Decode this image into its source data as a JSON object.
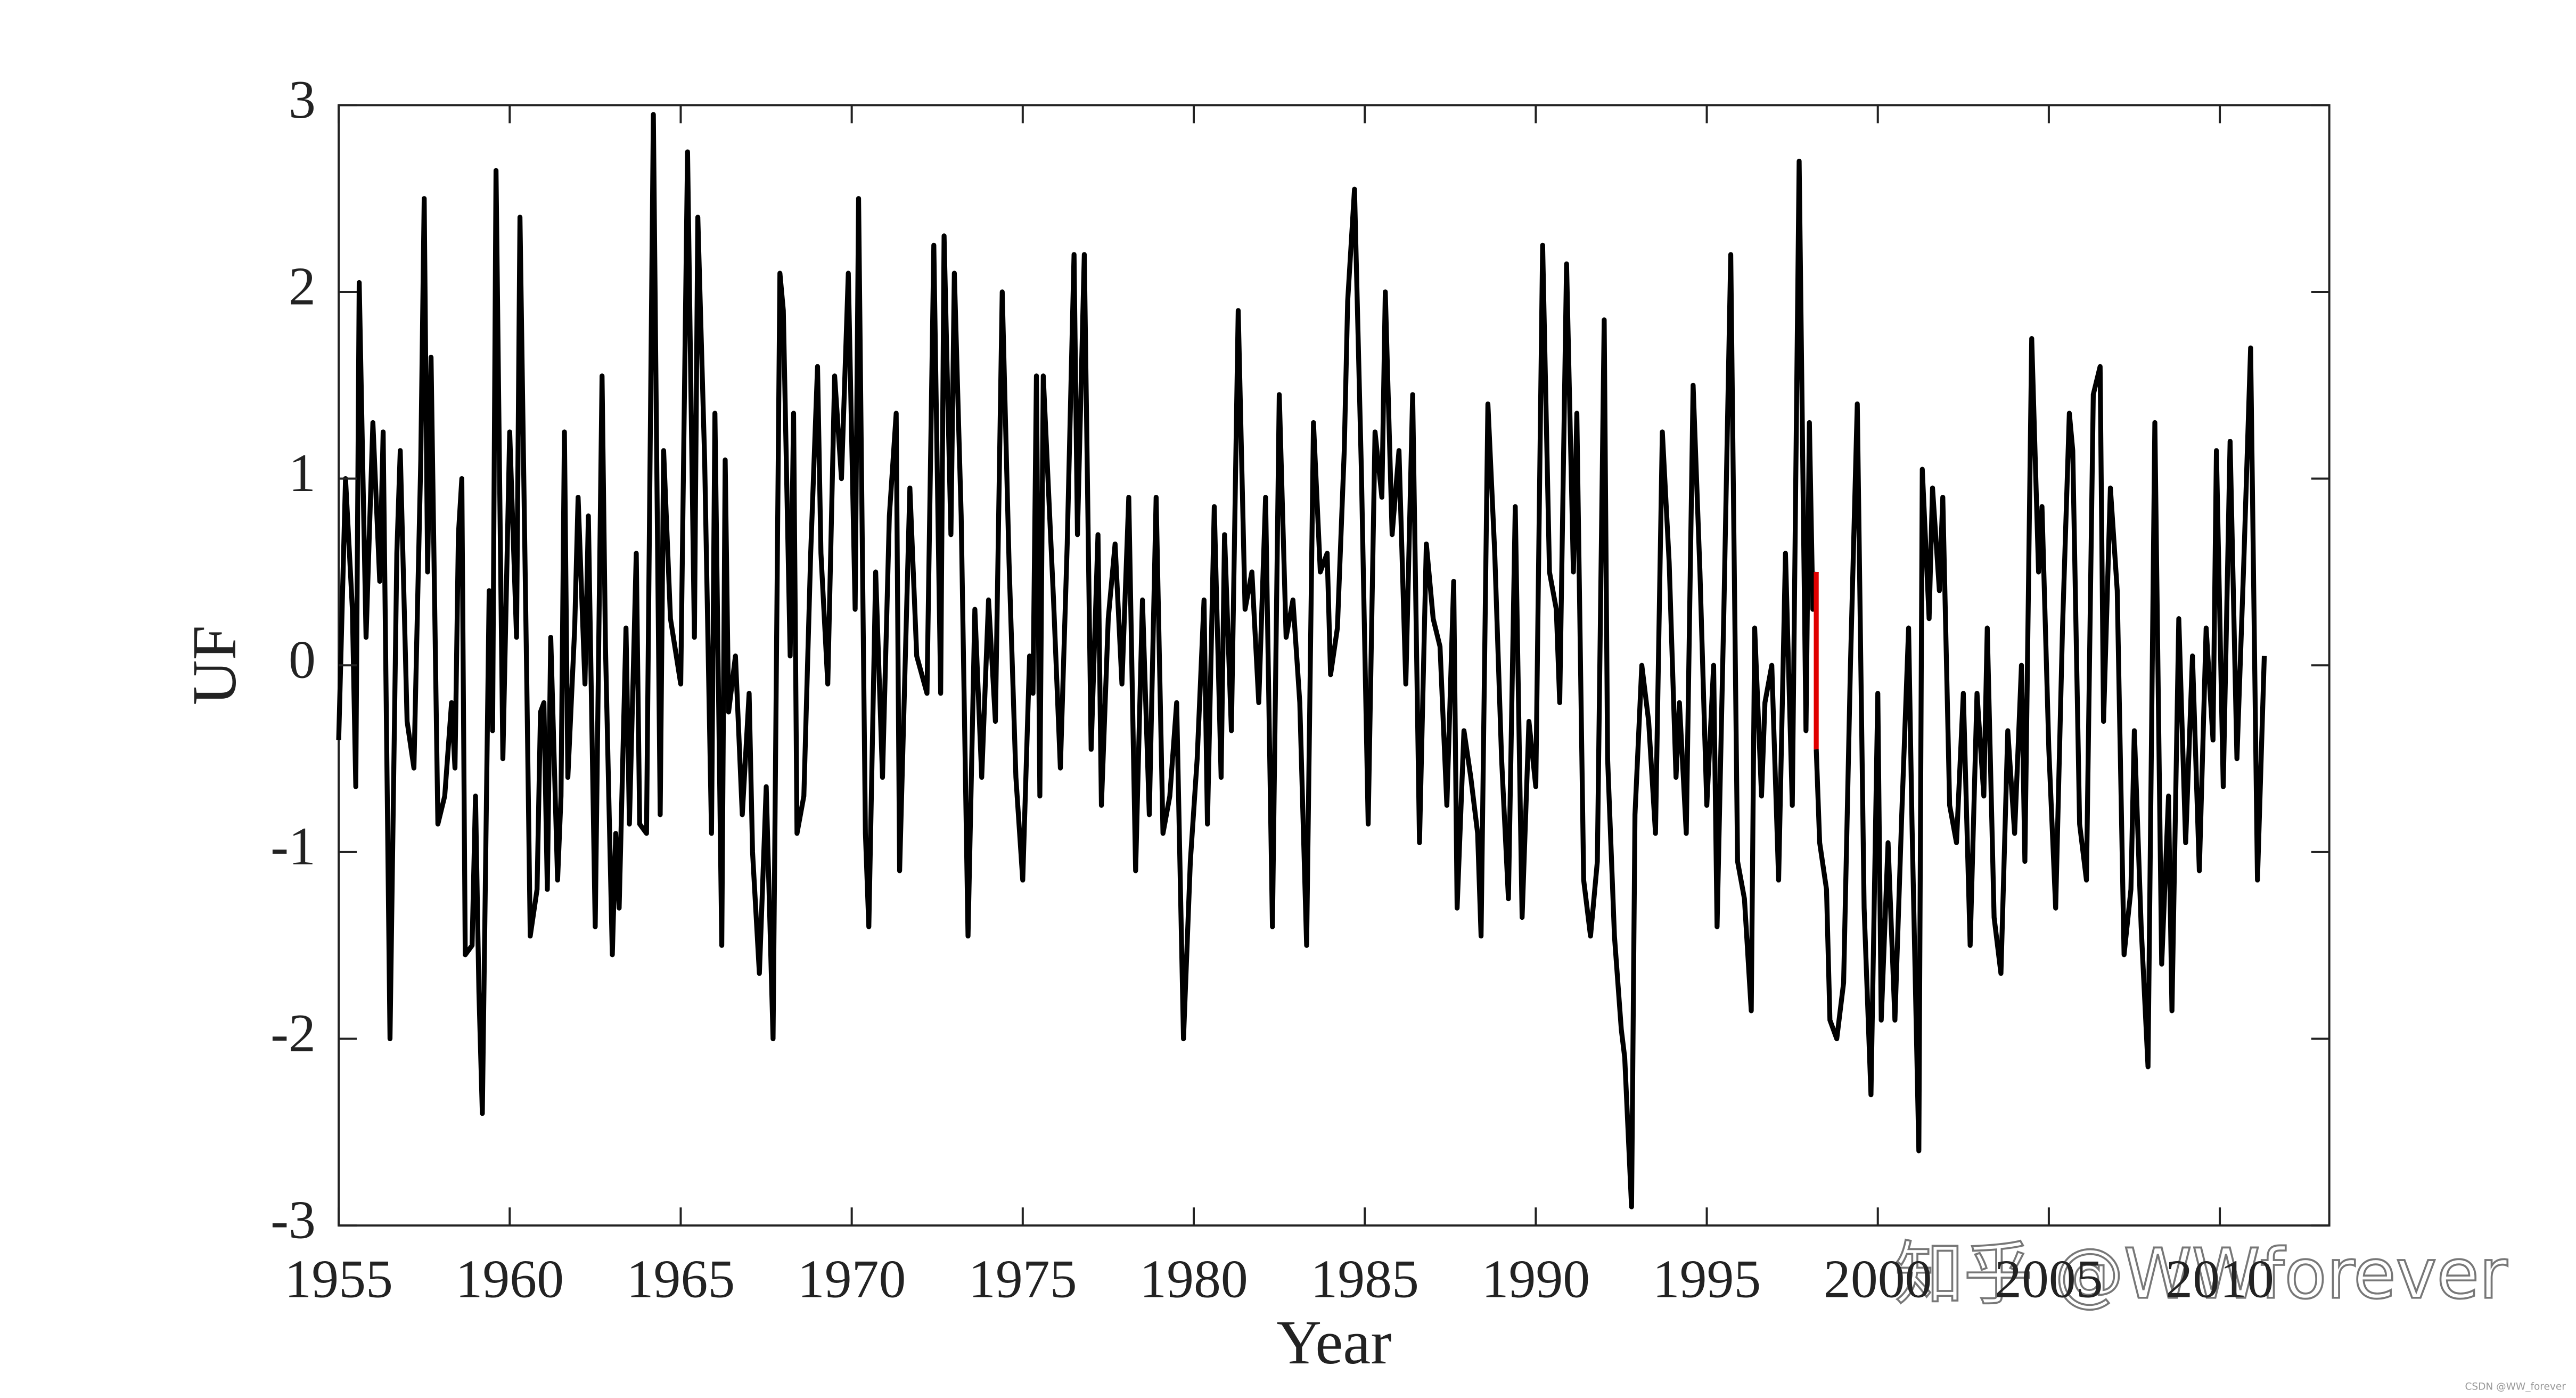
{
  "chart_data": {
    "type": "line",
    "xlabel": "Year",
    "ylabel": "UF",
    "xlim": [
      1955,
      2013.2
    ],
    "ylim": [
      -3,
      3
    ],
    "xticks": [
      1955,
      1960,
      1965,
      1970,
      1975,
      1980,
      1985,
      1990,
      1995,
      2000,
      2005,
      2010
    ],
    "yticks": [
      -3,
      -2,
      -1,
      0,
      1,
      2,
      3
    ],
    "watermark": "知乎 @WWforever",
    "credit": "CSDN @WW_forever",
    "series": [
      {
        "color": "#000000",
        "x": [
          1955.0,
          1955.2,
          1955.4,
          1955.5,
          1955.6,
          1955.8,
          1956.0,
          1956.2,
          1956.3,
          1956.5,
          1956.7,
          1956.8,
          1957.0,
          1957.2,
          1957.4,
          1957.5,
          1957.6,
          1957.7,
          1957.9,
          1958.1,
          1958.3,
          1958.4,
          1958.5,
          1958.6,
          1958.7,
          1958.9,
          1959.0,
          1959.1,
          1959.2,
          1959.4,
          1959.5,
          1959.6,
          1959.8,
          1960.0,
          1960.2,
          1960.3,
          1960.5,
          1960.6,
          1960.8,
          1960.9,
          1961.0,
          1961.1,
          1961.2,
          1961.4,
          1961.5,
          1961.6,
          1961.7,
          1961.9,
          1962.0,
          1962.2,
          1962.3,
          1962.5,
          1962.7,
          1962.8,
          1963.0,
          1963.1,
          1963.2,
          1963.4,
          1963.5,
          1963.7,
          1963.8,
          1964.0,
          1964.2,
          1964.4,
          1964.5,
          1964.7,
          1965.0,
          1965.2,
          1965.4,
          1965.5,
          1965.7,
          1965.9,
          1966.0,
          1966.2,
          1966.3,
          1966.4,
          1966.6,
          1966.8,
          1967.0,
          1967.1,
          1967.3,
          1967.5,
          1967.7,
          1967.9,
          1968.0,
          1968.2,
          1968.3,
          1968.4,
          1968.6,
          1968.8,
          1969.0,
          1969.1,
          1969.3,
          1969.5,
          1969.7,
          1969.9,
          1970.1,
          1970.2,
          1970.4,
          1970.5,
          1970.7,
          1970.9,
          1971.1,
          1971.3,
          1971.4,
          1971.7,
          1971.9,
          1972.2,
          1972.4,
          1972.6,
          1972.7,
          1972.9,
          1973.0,
          1973.2,
          1973.4,
          1973.6,
          1973.8,
          1974.0,
          1974.2,
          1974.4,
          1974.6,
          1974.8,
          1975.0,
          1975.2,
          1975.3,
          1975.4,
          1975.5,
          1975.6,
          1975.9,
          1976.1,
          1976.3,
          1976.5,
          1976.6,
          1976.8,
          1977.0,
          1977.2,
          1977.3,
          1977.5,
          1977.7,
          1977.9,
          1978.1,
          1978.3,
          1978.5,
          1978.7,
          1978.9,
          1979.1,
          1979.3,
          1979.5,
          1979.7,
          1979.9,
          1980.1,
          1980.3,
          1980.4,
          1980.6,
          1980.8,
          1980.9,
          1981.1,
          1981.3,
          1981.5,
          1981.7,
          1981.9,
          1982.1,
          1982.3,
          1982.5,
          1982.7,
          1982.9,
          1983.1,
          1983.3,
          1983.5,
          1983.7,
          1983.9,
          1984.0,
          1984.2,
          1984.4,
          1984.5,
          1984.7,
          1984.9,
          1985.1,
          1985.3,
          1985.5,
          1985.6,
          1985.8,
          1986.0,
          1986.2,
          1986.4,
          1986.6,
          1986.8,
          1987.0,
          1987.2,
          1987.4,
          1987.6,
          1987.7,
          1987.9,
          1988.1,
          1988.3,
          1988.4,
          1988.6,
          1988.8,
          1989.0,
          1989.2,
          1989.4,
          1989.6,
          1989.8,
          1990.0,
          1990.2,
          1990.4,
          1990.6,
          1990.7,
          1990.9,
          1991.1,
          1991.2,
          1991.4,
          1991.6,
          1991.8,
          1992.0,
          1992.1,
          1992.3,
          1992.5,
          1992.6,
          1992.8,
          1992.9,
          1993.1,
          1993.3,
          1993.5,
          1993.7,
          1993.9,
          1994.1,
          1994.2,
          1994.4,
          1994.6,
          1994.8,
          1995.0,
          1995.2,
          1995.3,
          1995.5,
          1995.7,
          1995.9,
          1996.1,
          1996.3,
          1996.4,
          1996.6,
          1996.7,
          1996.9,
          1997.1,
          1997.3,
          1997.5,
          1997.7,
          1997.9,
          1998.0,
          1998.1,
          1998.2,
          1998.2,
          1998.2,
          1998.3,
          1998.5,
          1998.6,
          1998.8,
          1999.0,
          1999.2,
          1999.4,
          1999.6,
          1999.8,
          2000.0,
          2000.1,
          2000.3,
          2000.5,
          2000.7,
          2000.9,
          2001.0,
          2001.2,
          2001.3,
          2001.5,
          2001.6,
          2001.8,
          2001.9,
          2002.1,
          2002.3,
          2002.5,
          2002.7,
          2002.9,
          2003.1,
          2003.2,
          2003.4,
          2003.6,
          2003.8,
          2004.0,
          2004.2,
          2004.3,
          2004.5,
          2004.7,
          2004.8,
          2005.0,
          2005.2,
          2005.4,
          2005.6,
          2005.7,
          2005.9,
          2006.1,
          2006.3,
          2006.5,
          2006.6,
          2006.8,
          2007.0,
          2007.2,
          2007.4,
          2007.5,
          2007.7,
          2007.9,
          2008.1,
          2008.3,
          2008.5,
          2008.6,
          2008.8,
          2009.0,
          2009.2,
          2009.4,
          2009.6,
          2009.8,
          2009.9,
          2010.1,
          2010.3,
          2010.5,
          2010.7,
          2010.9,
          2011.1,
          2011.3
        ],
        "values": [
          -0.4,
          1.0,
          0.3,
          -0.65,
          2.05,
          0.15,
          1.3,
          0.45,
          1.25,
          -2.0,
          0.6,
          1.15,
          -0.3,
          -0.55,
          1.1,
          2.5,
          0.5,
          1.65,
          -0.85,
          -0.7,
          -0.2,
          -0.55,
          0.7,
          1.0,
          -1.55,
          -1.5,
          -0.7,
          -1.75,
          -2.4,
          0.4,
          -0.35,
          2.65,
          -0.5,
          1.25,
          0.15,
          2.4,
          -0.1,
          -1.45,
          -1.2,
          -0.25,
          -0.2,
          -1.2,
          0.15,
          -1.15,
          -0.7,
          1.25,
          -0.6,
          0.2,
          0.9,
          -0.1,
          0.8,
          -1.4,
          1.55,
          0.1,
          -1.55,
          -0.9,
          -1.3,
          0.2,
          -0.85,
          0.6,
          -0.85,
          -0.9,
          2.95,
          -0.8,
          1.15,
          0.25,
          -0.1,
          2.75,
          0.15,
          2.4,
          1.1,
          -0.9,
          1.35,
          -1.5,
          1.1,
          -0.25,
          0.05,
          -0.8,
          -0.15,
          -1.0,
          -1.65,
          -0.65,
          -2.0,
          2.1,
          1.9,
          0.05,
          1.35,
          -0.9,
          -0.7,
          0.6,
          1.6,
          0.6,
          -0.1,
          1.55,
          1.0,
          2.1,
          0.3,
          2.5,
          -0.9,
          -1.4,
          0.5,
          -0.6,
          0.8,
          1.35,
          -1.1,
          0.95,
          0.05,
          -0.15,
          2.25,
          -0.15,
          2.3,
          0.7,
          2.1,
          0.8,
          -1.45,
          0.3,
          -0.6,
          0.35,
          -0.3,
          2.0,
          0.55,
          -0.6,
          -1.15,
          0.05,
          -0.15,
          1.55,
          -0.7,
          1.55,
          0.35,
          -0.55,
          0.65,
          2.2,
          0.7,
          2.2,
          -0.45,
          0.7,
          -0.75,
          0.25,
          0.65,
          -0.1,
          0.9,
          -1.1,
          0.35,
          -0.8,
          0.9,
          -0.9,
          -0.7,
          -0.2,
          -2.0,
          -1.05,
          -0.5,
          0.35,
          -0.85,
          0.85,
          -0.6,
          0.7,
          -0.35,
          1.9,
          0.3,
          0.5,
          -0.2,
          0.9,
          -1.4,
          1.45,
          0.15,
          0.35,
          -0.2,
          -1.5,
          1.3,
          0.5,
          0.6,
          -0.05,
          0.2,
          1.15,
          1.95,
          2.55,
          1.05,
          -0.85,
          1.25,
          0.9,
          2.0,
          0.7,
          1.15,
          -0.1,
          1.45,
          -0.95,
          0.65,
          0.25,
          0.1,
          -0.75,
          0.45,
          -1.3,
          -0.35,
          -0.6,
          -0.9,
          -1.45,
          1.4,
          0.6,
          -0.5,
          -1.25,
          0.85,
          -1.35,
          -0.3,
          -0.65,
          2.25,
          0.5,
          0.3,
          -0.2,
          2.15,
          0.5,
          1.35,
          -1.15,
          -1.45,
          -1.05,
          1.85,
          -0.5,
          -1.45,
          -1.95,
          -2.1,
          -2.9,
          -0.8,
          0.0,
          -0.3,
          -0.9,
          1.25,
          0.55,
          -0.6,
          -0.2,
          -0.9,
          1.5,
          0.5,
          -0.75,
          0.0,
          -1.4,
          0.3,
          2.2,
          -1.05,
          -1.25,
          -1.85,
          0.2,
          -0.7,
          -0.2,
          0.0,
          -1.15,
          0.6,
          -0.75,
          2.7,
          -0.35,
          1.3,
          0.3,
          0.5,
          null,
          -0.45,
          -0.95,
          -1.2,
          -1.9,
          -2.0,
          -1.7,
          0.0,
          1.4,
          -1.3,
          -2.3,
          -0.15,
          -1.9,
          -0.95,
          -1.9,
          -0.8,
          0.2,
          -0.85,
          -2.6,
          1.05,
          0.25,
          0.95,
          0.4,
          0.9,
          -0.75,
          -0.95,
          -0.15,
          -1.5,
          -0.15,
          -0.7,
          0.2,
          -1.35,
          -1.65,
          -0.35,
          -0.9,
          0.0,
          -1.05,
          1.75,
          0.5,
          0.85,
          -0.45,
          -1.3,
          0.2,
          1.35,
          1.15,
          -0.85,
          -1.15,
          1.45,
          1.6,
          -0.3,
          0.95,
          0.4,
          -1.55,
          -1.2,
          -0.35,
          -1.4,
          -2.15,
          1.3,
          -1.6,
          -0.7,
          -1.85,
          0.25,
          -0.95,
          0.05,
          -1.1,
          0.2,
          -0.4,
          1.15,
          -0.65,
          1.2,
          -0.5,
          0.55,
          1.7,
          -1.15,
          0.05
        ]
      },
      {
        "color": "#e00000",
        "x": [
          1998.2,
          1998.2
        ],
        "values": [
          0.5,
          -0.45
        ]
      }
    ]
  }
}
